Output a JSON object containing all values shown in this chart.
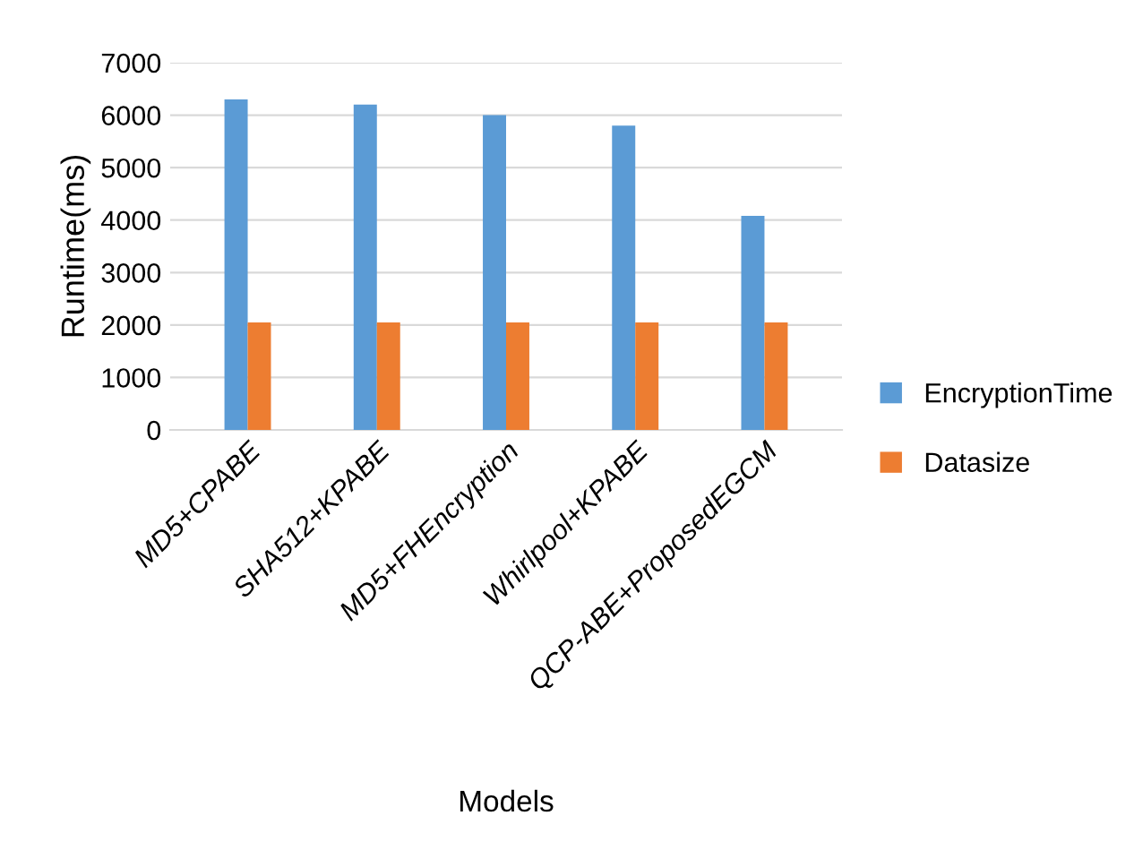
{
  "chart_data": {
    "type": "bar",
    "xlabel": "Models",
    "ylabel": "Runtime(ms)",
    "categories": [
      "MD5+CPABE",
      "SHA512+KPABE",
      "MD5+FHEncryption",
      "Whirlpool+KPABE",
      "QCP-ABE+ProposedEGCM"
    ],
    "series": [
      {
        "name": "EncryptionTime",
        "color": "#5b9bd5",
        "values": [
          6300,
          6200,
          6000,
          5800,
          4080
        ]
      },
      {
        "name": "Datasize",
        "color": "#ed7d31",
        "values": [
          2050,
          2050,
          2050,
          2050,
          2050
        ]
      }
    ],
    "ylim": [
      0,
      7000
    ],
    "yticks": [
      0,
      1000,
      2000,
      3000,
      4000,
      5000,
      6000,
      7000
    ],
    "grid": "y",
    "legend": "right"
  }
}
